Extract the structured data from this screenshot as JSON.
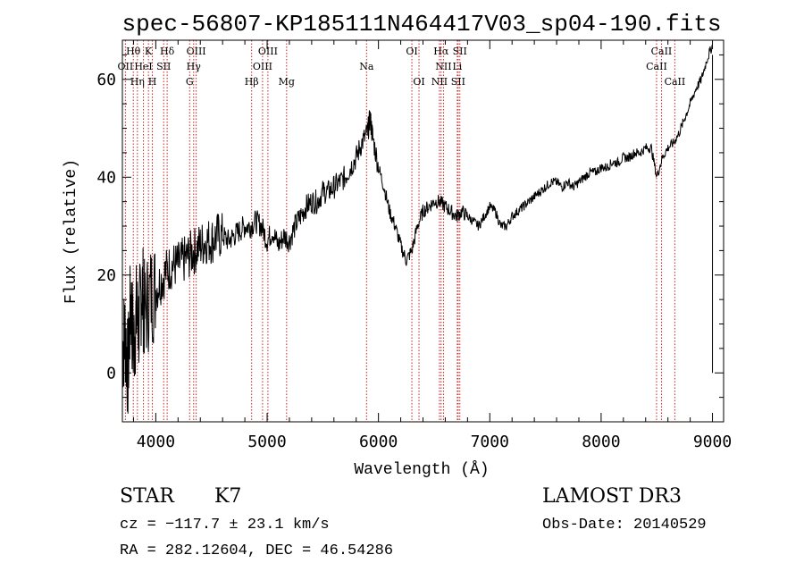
{
  "chart_data": {
    "type": "line",
    "title": "spec-56807-KP185111N464417V03_sp04-190.fits",
    "xlabel": "Wavelength (Å)",
    "ylabel": "Flux (relative)",
    "xlim": [
      3700,
      9100
    ],
    "ylim": [
      -10,
      68
    ],
    "xticks": [
      4000,
      5000,
      6000,
      7000,
      8000,
      9000
    ],
    "yticks": [
      0,
      20,
      40,
      60
    ],
    "grid": false,
    "series": [
      {
        "name": "flux",
        "x": [
          3700,
          3725,
          3750,
          3775,
          3800,
          3825,
          3850,
          3875,
          3900,
          3950,
          4000,
          4050,
          4100,
          4150,
          4200,
          4250,
          4300,
          4350,
          4400,
          4450,
          4500,
          4550,
          4600,
          4650,
          4700,
          4750,
          4800,
          4850,
          4900,
          4950,
          5000,
          5050,
          5100,
          5150,
          5200,
          5250,
          5300,
          5350,
          5400,
          5450,
          5500,
          5550,
          5600,
          5650,
          5700,
          5750,
          5800,
          5850,
          5900,
          5925,
          5950,
          6000,
          6050,
          6100,
          6150,
          6200,
          6250,
          6300,
          6350,
          6400,
          6450,
          6500,
          6550,
          6600,
          6650,
          6700,
          6750,
          6800,
          6850,
          6900,
          6950,
          7000,
          7050,
          7100,
          7150,
          7200,
          7250,
          7300,
          7350,
          7400,
          7450,
          7500,
          7550,
          7600,
          7650,
          7700,
          7750,
          7800,
          7850,
          7900,
          7950,
          8000,
          8050,
          8100,
          8150,
          8200,
          8250,
          8300,
          8350,
          8400,
          8450,
          8500,
          8550,
          8600,
          8650,
          8700,
          8750,
          8800,
          8850,
          8900,
          8950,
          9000
        ],
        "y": [
          5,
          8,
          0,
          15,
          5,
          12,
          10,
          18,
          12,
          16,
          17,
          19,
          21,
          22,
          22,
          23,
          24,
          25,
          26,
          27,
          27,
          28,
          28,
          27,
          28,
          29,
          30,
          30,
          31,
          30,
          27,
          29,
          26,
          28,
          27,
          30,
          32,
          34,
          35,
          35,
          37,
          37,
          38,
          39,
          40,
          42,
          44,
          47,
          49,
          52,
          48,
          42,
          38,
          33,
          30,
          26,
          23,
          25,
          30,
          33,
          34,
          35,
          35,
          34,
          33,
          32,
          33,
          32,
          31,
          30,
          32,
          34,
          33,
          30,
          30,
          32,
          33,
          34,
          35,
          36,
          37,
          38,
          39,
          39,
          38,
          39,
          38,
          39,
          40,
          41,
          41,
          42,
          42,
          43,
          43,
          44,
          44,
          45,
          45,
          46,
          46,
          40,
          44,
          46,
          47,
          49,
          52,
          55,
          58,
          60,
          64,
          67
        ]
      }
    ],
    "lines": [
      {
        "label": "Hθ",
        "wavelength": 3798,
        "row": 0
      },
      {
        "label": "K",
        "wavelength": 3934,
        "row": 0
      },
      {
        "label": "Hδ",
        "wavelength": 4102,
        "row": 0
      },
      {
        "label": "OIII",
        "wavelength": 4363,
        "row": 0
      },
      {
        "label": "OIII",
        "wavelength": 5007,
        "row": 0
      },
      {
        "label": "OI",
        "wavelength": 6300,
        "row": 0
      },
      {
        "label": "Hα",
        "wavelength": 6563,
        "row": 0
      },
      {
        "label": "SII",
        "wavelength": 6731,
        "row": 0
      },
      {
        "label": "CaII",
        "wavelength": 8542,
        "row": 0
      },
      {
        "label": "OII",
        "wavelength": 3727,
        "row": 1
      },
      {
        "label": "HeI",
        "wavelength": 3889,
        "row": 1
      },
      {
        "label": "SII",
        "wavelength": 4071,
        "row": 1
      },
      {
        "label": "Hγ",
        "wavelength": 4340,
        "row": 1
      },
      {
        "label": "OIII",
        "wavelength": 4959,
        "row": 1
      },
      {
        "label": "NII",
        "wavelength": 6584,
        "row": 1
      },
      {
        "label": "Li",
        "wavelength": 6708,
        "row": 1
      },
      {
        "label": "CaII",
        "wavelength": 8498,
        "row": 1
      },
      {
        "label": "Hη",
        "wavelength": 3835,
        "row": 2
      },
      {
        "label": "H",
        "wavelength": 3969,
        "row": 2
      },
      {
        "label": "G",
        "wavelength": 4304,
        "row": 2
      },
      {
        "label": "Hβ",
        "wavelength": 4861,
        "row": 2
      },
      {
        "label": "Mg",
        "wavelength": 5175,
        "row": 2
      },
      {
        "label": "Na",
        "wavelength": 5893,
        "row": 1
      },
      {
        "label": "OI",
        "wavelength": 6364,
        "row": 2
      },
      {
        "label": "NII",
        "wavelength": 6548,
        "row": 2
      },
      {
        "label": "SII",
        "wavelength": 6716,
        "row": 2
      },
      {
        "label": "CaII",
        "wavelength": 8662,
        "row": 2
      }
    ],
    "lines_color": "#cc2222"
  },
  "info": {
    "class": "STAR",
    "subclass": "K7",
    "survey": "LAMOST DR3",
    "cz": "cz = −117.7 ± 23.1 km/s",
    "obs_date": "Obs-Date: 20140529",
    "coords": "RA = 282.12604, DEC =  46.54286"
  }
}
